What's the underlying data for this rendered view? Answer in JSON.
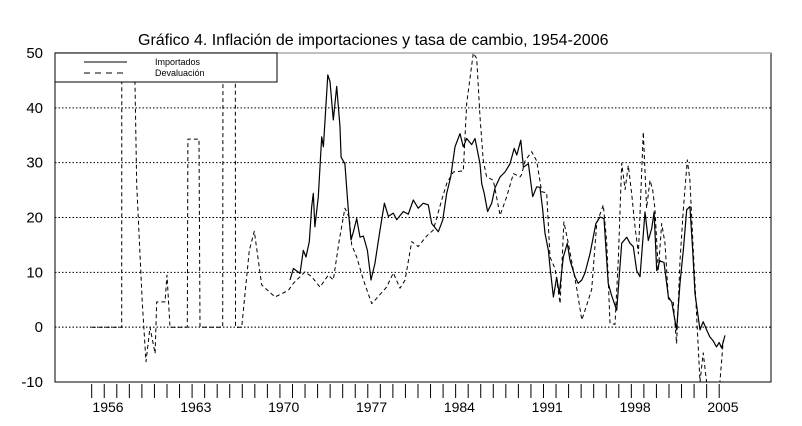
{
  "chart_data": {
    "type": "line",
    "title": "Gráfico 4. Inflación de importaciones y tasa de cambio, 1954-2006",
    "xlabel": "",
    "ylabel": "",
    "xlim": [
      1954,
      2006
    ],
    "ylim": [
      -10,
      50
    ],
    "yticks": [
      "50",
      "40",
      "30",
      "20",
      "10",
      "0",
      "-10"
    ],
    "ytick_values": [
      50,
      40,
      30,
      20,
      10,
      0,
      -10
    ],
    "xticks": [
      "1956",
      "1963",
      "1970",
      "1977",
      "1984",
      "1991",
      "1998",
      "2005"
    ],
    "xtick_values": [
      1956,
      1963,
      1970,
      1977,
      1984,
      1991,
      1998,
      2005
    ],
    "grid": "horizontal dotted",
    "legend_position": "top-left",
    "series": [
      {
        "name": "Importados",
        "style": "solid",
        "color": "#000000",
        "points": [
          [
            1970.5,
            8.6
          ],
          [
            1970.77,
            10.7
          ],
          [
            1971.3,
            9.8
          ],
          [
            1971.56,
            14
          ],
          [
            1971.78,
            12.8
          ],
          [
            1972.04,
            15.6
          ],
          [
            1972.23,
            22
          ],
          [
            1972.36,
            24.4
          ],
          [
            1972.49,
            18.3
          ],
          [
            1972.76,
            23.8
          ],
          [
            1973.03,
            34.7
          ],
          [
            1973.16,
            32.9
          ],
          [
            1973.51,
            46
          ],
          [
            1973.69,
            44.8
          ],
          [
            1973.95,
            37.8
          ],
          [
            1974.22,
            43.9
          ],
          [
            1974.49,
            36.5
          ],
          [
            1974.57,
            31
          ],
          [
            1974.88,
            29.8
          ],
          [
            1975.15,
            21.4
          ],
          [
            1975.36,
            15.9
          ],
          [
            1975.55,
            17.4
          ],
          [
            1975.82,
            19.8
          ],
          [
            1976.08,
            16.4
          ],
          [
            1976.35,
            16.6
          ],
          [
            1976.67,
            14
          ],
          [
            1976.96,
            8.6
          ],
          [
            1977.27,
            11.6
          ],
          [
            1977.67,
            17.7
          ],
          [
            1978.02,
            22.6
          ],
          [
            1978.34,
            20.2
          ],
          [
            1978.73,
            20.8
          ],
          [
            1979.0,
            19.6
          ],
          [
            1979.53,
            21.1
          ],
          [
            1979.93,
            20.6
          ],
          [
            1980.33,
            23.2
          ],
          [
            1980.72,
            21.7
          ],
          [
            1981.12,
            22.6
          ],
          [
            1981.52,
            22.3
          ],
          [
            1981.79,
            18.9
          ],
          [
            1982.32,
            17.4
          ],
          [
            1982.67,
            19.5
          ],
          [
            1982.99,
            24.4
          ],
          [
            1983.31,
            27.4
          ],
          [
            1983.65,
            32.9
          ],
          [
            1984.05,
            35.3
          ],
          [
            1984.31,
            32.9
          ],
          [
            1984.58,
            34.4
          ],
          [
            1984.98,
            33.3
          ],
          [
            1985.24,
            34.4
          ],
          [
            1985.64,
            29.8
          ],
          [
            1985.78,
            26.2
          ],
          [
            1985.98,
            24.4
          ],
          [
            1986.25,
            21.1
          ],
          [
            1986.57,
            22.6
          ],
          [
            1986.84,
            25.4
          ],
          [
            1987.24,
            27.4
          ],
          [
            1987.63,
            28.3
          ],
          [
            1988.03,
            29.8
          ],
          [
            1988.37,
            32.6
          ],
          [
            1988.57,
            31.4
          ],
          [
            1988.89,
            34.1
          ],
          [
            1989.1,
            29.2
          ],
          [
            1989.5,
            29.8
          ],
          [
            1989.84,
            23.8
          ],
          [
            1990.16,
            25.6
          ],
          [
            1990.42,
            25.5
          ],
          [
            1990.64,
            21.4
          ],
          [
            1990.82,
            17.1
          ],
          [
            1991.09,
            14
          ],
          [
            1991.22,
            11
          ],
          [
            1991.49,
            5.5
          ],
          [
            1991.75,
            9.1
          ],
          [
            1991.96,
            6.1
          ],
          [
            1992.28,
            12.8
          ],
          [
            1992.6,
            15.3
          ],
          [
            1992.81,
            12.2
          ],
          [
            1993.21,
            9.2
          ],
          [
            1993.47,
            8
          ],
          [
            1993.75,
            8.6
          ],
          [
            1994.01,
            9.9
          ],
          [
            1994.41,
            13.4
          ],
          [
            1994.88,
            18.9
          ],
          [
            1995.2,
            20.1
          ],
          [
            1995.52,
            19.8
          ],
          [
            1995.86,
            8
          ],
          [
            1996.13,
            5.8
          ],
          [
            1996.53,
            3.1
          ],
          [
            1996.93,
            15.3
          ],
          [
            1997.33,
            16.4
          ],
          [
            1997.59,
            15.3
          ],
          [
            1997.86,
            14.7
          ],
          [
            1998.13,
            10.3
          ],
          [
            1998.39,
            9.2
          ],
          [
            1998.79,
            21
          ],
          [
            1999.05,
            15.8
          ],
          [
            1999.32,
            18
          ],
          [
            1999.51,
            21
          ],
          [
            1999.72,
            10.3
          ],
          [
            1999.98,
            12.1
          ],
          [
            2000.3,
            11.8
          ],
          [
            2000.65,
            5.5
          ],
          [
            2000.92,
            4.6
          ],
          [
            2001.31,
            -0.5
          ],
          [
            2001.58,
            8
          ],
          [
            2001.84,
            14
          ],
          [
            2002.11,
            21.4
          ],
          [
            2002.37,
            22
          ],
          [
            2002.59,
            14
          ],
          [
            2002.77,
            6.1
          ],
          [
            2003.17,
            -0.5
          ],
          [
            2003.43,
            1
          ],
          [
            2003.7,
            -0.5
          ],
          [
            2003.96,
            -1.8
          ],
          [
            2004.22,
            -2.5
          ],
          [
            2004.49,
            -3.6
          ],
          [
            2004.7,
            -2.8
          ],
          [
            2004.89,
            -3.8
          ],
          [
            2005.16,
            -1.5
          ]
        ]
      },
      {
        "name": "Devaluación",
        "style": "dashed",
        "color": "#000000",
        "points": [
          [
            1954.7,
            0
          ],
          [
            1957.09,
            0
          ],
          [
            1957.1,
            55
          ],
          [
            1958.07,
            55
          ],
          [
            1958.29,
            26
          ],
          [
            1958.73,
            4.4
          ],
          [
            1959.03,
            -6.3
          ],
          [
            1959.35,
            0
          ],
          [
            1959.75,
            -4.8
          ],
          [
            1959.88,
            4.6
          ],
          [
            1960.54,
            4.6
          ],
          [
            1960.7,
            9.5
          ],
          [
            1960.94,
            0
          ],
          [
            1962.32,
            0
          ],
          [
            1962.37,
            34.3
          ],
          [
            1963.25,
            34.3
          ],
          [
            1963.33,
            0
          ],
          [
            1965.14,
            0
          ],
          [
            1965.16,
            55
          ],
          [
            1966.14,
            55
          ],
          [
            1966.16,
            0
          ],
          [
            1966.65,
            0
          ],
          [
            1967.26,
            14
          ],
          [
            1967.66,
            17.5
          ],
          [
            1968.25,
            7.7
          ],
          [
            1969.31,
            5.5
          ],
          [
            1970.37,
            6.7
          ],
          [
            1970.77,
            8
          ],
          [
            1971.7,
            10.1
          ],
          [
            1972.23,
            9.2
          ],
          [
            1972.89,
            7.3
          ],
          [
            1973.55,
            9.5
          ],
          [
            1973.95,
            8.6
          ],
          [
            1974.43,
            15.9
          ],
          [
            1974.88,
            21.7
          ],
          [
            1975.23,
            20
          ],
          [
            1975.42,
            15
          ],
          [
            1975.82,
            12.8
          ],
          [
            1976.35,
            8.6
          ],
          [
            1977.01,
            4.3
          ],
          [
            1977.27,
            4.9
          ],
          [
            1978.2,
            7.3
          ],
          [
            1978.73,
            9.9
          ],
          [
            1979.27,
            7.1
          ],
          [
            1979.67,
            8.6
          ],
          [
            1980.2,
            15.6
          ],
          [
            1980.72,
            14.7
          ],
          [
            1981.39,
            16.6
          ],
          [
            1981.92,
            17.7
          ],
          [
            1982.59,
            23.2
          ],
          [
            1982.99,
            26.2
          ],
          [
            1983.51,
            28.3
          ],
          [
            1984.31,
            28.5
          ],
          [
            1984.58,
            40.8
          ],
          [
            1985.11,
            50
          ],
          [
            1985.38,
            49
          ],
          [
            1985.64,
            38.4
          ],
          [
            1985.9,
            30.5
          ],
          [
            1986.17,
            27.4
          ],
          [
            1986.7,
            26.8
          ],
          [
            1987.24,
            20.4
          ],
          [
            1987.77,
            23.8
          ],
          [
            1988.3,
            28
          ],
          [
            1988.83,
            27.4
          ],
          [
            1988.96,
            27.8
          ],
          [
            1989.23,
            30.3
          ],
          [
            1989.76,
            32
          ],
          [
            1990.16,
            30.3
          ],
          [
            1990.56,
            24.7
          ],
          [
            1990.96,
            24.5
          ],
          [
            1991.22,
            12.8
          ],
          [
            1991.62,
            10.7
          ],
          [
            1992.02,
            4.3
          ],
          [
            1992.33,
            19.2
          ],
          [
            1992.68,
            15.3
          ],
          [
            1992.95,
            12
          ],
          [
            1993.35,
            7.1
          ],
          [
            1993.75,
            1.3
          ],
          [
            1994.14,
            4
          ],
          [
            1994.54,
            6.9
          ],
          [
            1994.94,
            18.9
          ],
          [
            1995.47,
            22.3
          ],
          [
            1995.74,
            15.5
          ],
          [
            1996.0,
            0.7
          ],
          [
            1996.4,
            0.5
          ],
          [
            1996.67,
            12.8
          ],
          [
            1996.93,
            29.9
          ],
          [
            1997.2,
            25.1
          ],
          [
            1997.46,
            29.5
          ],
          [
            1997.73,
            24.3
          ],
          [
            1997.99,
            18.3
          ],
          [
            1998.26,
            13.4
          ],
          [
            1998.65,
            35.6
          ],
          [
            1998.92,
            21.7
          ],
          [
            1999.19,
            26.8
          ],
          [
            1999.4,
            25
          ],
          [
            1999.58,
            21.7
          ],
          [
            1999.85,
            10.3
          ],
          [
            2000.12,
            18.9
          ],
          [
            2000.38,
            15.3
          ],
          [
            2000.65,
            5.2
          ],
          [
            2001.04,
            4.5
          ],
          [
            2001.31,
            -3
          ],
          [
            2001.58,
            12.1
          ],
          [
            2001.84,
            21.4
          ],
          [
            2002.16,
            30.5
          ],
          [
            2002.37,
            26.8
          ],
          [
            2002.64,
            14
          ],
          [
            2002.91,
            1.9
          ],
          [
            2003.17,
            -10
          ],
          [
            2003.43,
            -4.7
          ],
          [
            2003.7,
            -10
          ],
          [
            2004.76,
            -10
          ],
          [
            2005.03,
            -2.4
          ]
        ]
      }
    ]
  }
}
